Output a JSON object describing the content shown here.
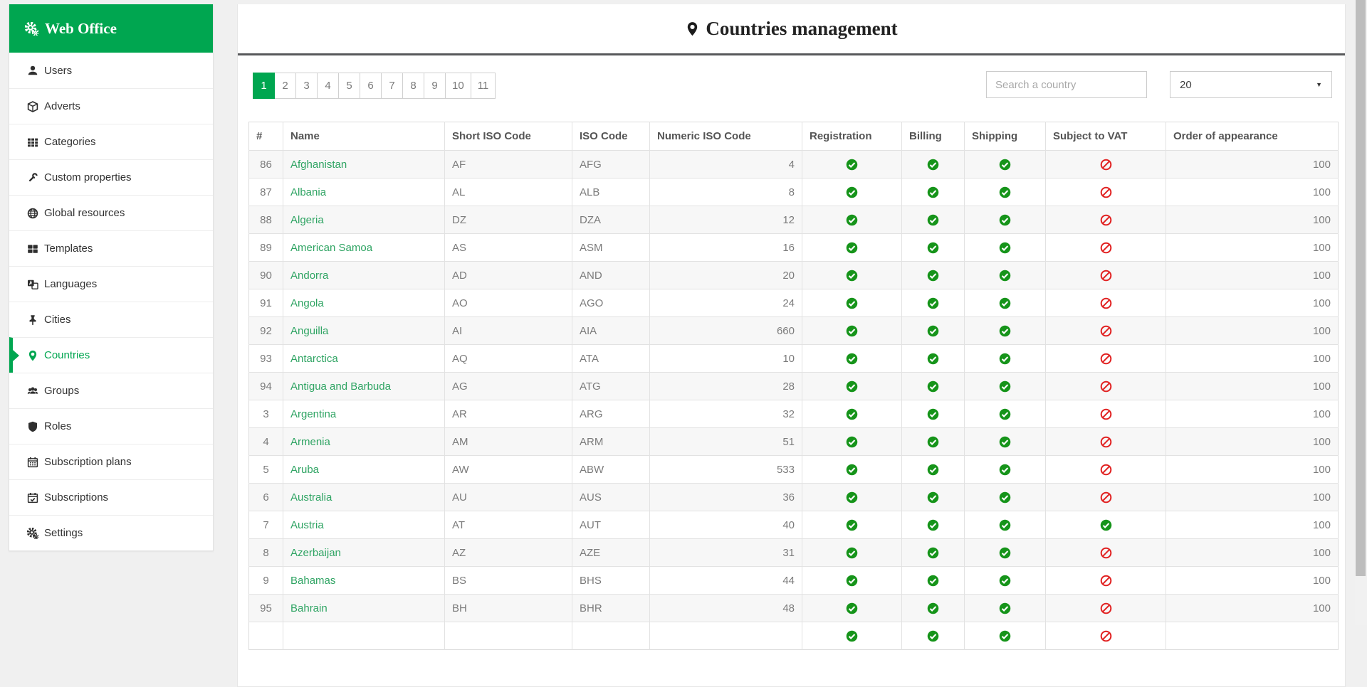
{
  "sidebar": {
    "title": "Web Office",
    "title_icon": "gears-icon",
    "items": [
      {
        "label": "Users",
        "icon": "user-icon",
        "active": false
      },
      {
        "label": "Adverts",
        "icon": "cube-icon",
        "active": false
      },
      {
        "label": "Categories",
        "icon": "grid-icon",
        "active": false
      },
      {
        "label": "Custom properties",
        "icon": "wrench-icon",
        "active": false
      },
      {
        "label": "Global resources",
        "icon": "globe-icon",
        "active": false
      },
      {
        "label": "Templates",
        "icon": "tiles-icon",
        "active": false
      },
      {
        "label": "Languages",
        "icon": "language-icon",
        "active": false
      },
      {
        "label": "Cities",
        "icon": "thumbtack-icon",
        "active": false
      },
      {
        "label": "Countries",
        "icon": "map-marker-icon",
        "active": true
      },
      {
        "label": "Groups",
        "icon": "users-icon",
        "active": false
      },
      {
        "label": "Roles",
        "icon": "shield-icon",
        "active": false
      },
      {
        "label": "Subscription plans",
        "icon": "calendar-icon",
        "active": false
      },
      {
        "label": "Subscriptions",
        "icon": "calendar-check-icon",
        "active": false
      },
      {
        "label": "Settings",
        "icon": "gears-icon",
        "active": false
      }
    ]
  },
  "header": {
    "title": "Countries management",
    "icon": "map-marker-icon"
  },
  "toolbar": {
    "pagination": {
      "pages": [
        "1",
        "2",
        "3",
        "4",
        "5",
        "6",
        "7",
        "8",
        "9",
        "10",
        "11"
      ],
      "active": "1"
    },
    "search": {
      "placeholder": "Search a country",
      "value": ""
    },
    "page_size": {
      "selected": "20"
    }
  },
  "table": {
    "columns": [
      "#",
      "Name",
      "Short ISO Code",
      "ISO Code",
      "Numeric ISO Code",
      "Registration",
      "Billing",
      "Shipping",
      "Subject to VAT",
      "Order of appearance"
    ],
    "rows": [
      {
        "num": "86",
        "name": "Afghanistan",
        "short_iso": "AF",
        "iso": "AFG",
        "numeric_iso": "4",
        "registration": true,
        "billing": true,
        "shipping": true,
        "vat": false,
        "order": "100"
      },
      {
        "num": "87",
        "name": "Albania",
        "short_iso": "AL",
        "iso": "ALB",
        "numeric_iso": "8",
        "registration": true,
        "billing": true,
        "shipping": true,
        "vat": false,
        "order": "100"
      },
      {
        "num": "88",
        "name": "Algeria",
        "short_iso": "DZ",
        "iso": "DZA",
        "numeric_iso": "12",
        "registration": true,
        "billing": true,
        "shipping": true,
        "vat": false,
        "order": "100"
      },
      {
        "num": "89",
        "name": "American Samoa",
        "short_iso": "AS",
        "iso": "ASM",
        "numeric_iso": "16",
        "registration": true,
        "billing": true,
        "shipping": true,
        "vat": false,
        "order": "100"
      },
      {
        "num": "90",
        "name": "Andorra",
        "short_iso": "AD",
        "iso": "AND",
        "numeric_iso": "20",
        "registration": true,
        "billing": true,
        "shipping": true,
        "vat": false,
        "order": "100"
      },
      {
        "num": "91",
        "name": "Angola",
        "short_iso": "AO",
        "iso": "AGO",
        "numeric_iso": "24",
        "registration": true,
        "billing": true,
        "shipping": true,
        "vat": false,
        "order": "100"
      },
      {
        "num": "92",
        "name": "Anguilla",
        "short_iso": "AI",
        "iso": "AIA",
        "numeric_iso": "660",
        "registration": true,
        "billing": true,
        "shipping": true,
        "vat": false,
        "order": "100"
      },
      {
        "num": "93",
        "name": "Antarctica",
        "short_iso": "AQ",
        "iso": "ATA",
        "numeric_iso": "10",
        "registration": true,
        "billing": true,
        "shipping": true,
        "vat": false,
        "order": "100"
      },
      {
        "num": "94",
        "name": "Antigua and Barbuda",
        "short_iso": "AG",
        "iso": "ATG",
        "numeric_iso": "28",
        "registration": true,
        "billing": true,
        "shipping": true,
        "vat": false,
        "order": "100"
      },
      {
        "num": "3",
        "name": "Argentina",
        "short_iso": "AR",
        "iso": "ARG",
        "numeric_iso": "32",
        "registration": true,
        "billing": true,
        "shipping": true,
        "vat": false,
        "order": "100"
      },
      {
        "num": "4",
        "name": "Armenia",
        "short_iso": "AM",
        "iso": "ARM",
        "numeric_iso": "51",
        "registration": true,
        "billing": true,
        "shipping": true,
        "vat": false,
        "order": "100"
      },
      {
        "num": "5",
        "name": "Aruba",
        "short_iso": "AW",
        "iso": "ABW",
        "numeric_iso": "533",
        "registration": true,
        "billing": true,
        "shipping": true,
        "vat": false,
        "order": "100"
      },
      {
        "num": "6",
        "name": "Australia",
        "short_iso": "AU",
        "iso": "AUS",
        "numeric_iso": "36",
        "registration": true,
        "billing": true,
        "shipping": true,
        "vat": false,
        "order": "100"
      },
      {
        "num": "7",
        "name": "Austria",
        "short_iso": "AT",
        "iso": "AUT",
        "numeric_iso": "40",
        "registration": true,
        "billing": true,
        "shipping": true,
        "vat": true,
        "order": "100"
      },
      {
        "num": "8",
        "name": "Azerbaijan",
        "short_iso": "AZ",
        "iso": "AZE",
        "numeric_iso": "31",
        "registration": true,
        "billing": true,
        "shipping": true,
        "vat": false,
        "order": "100"
      },
      {
        "num": "9",
        "name": "Bahamas",
        "short_iso": "BS",
        "iso": "BHS",
        "numeric_iso": "44",
        "registration": true,
        "billing": true,
        "shipping": true,
        "vat": false,
        "order": "100"
      },
      {
        "num": "95",
        "name": "Bahrain",
        "short_iso": "BH",
        "iso": "BHR",
        "numeric_iso": "48",
        "registration": true,
        "billing": true,
        "shipping": true,
        "vat": false,
        "order": "100"
      }
    ],
    "partial_row": {
      "registration": true,
      "billing": true,
      "shipping": true,
      "vat": false
    },
    "true_icon": "check-circle-icon",
    "false_icon": "ban-icon"
  },
  "colors": {
    "accent_green": "#00a650",
    "link_green": "#2fa463",
    "check_green": "#16941a",
    "ban_red": "#e12222",
    "header_rule": "#57585a"
  }
}
